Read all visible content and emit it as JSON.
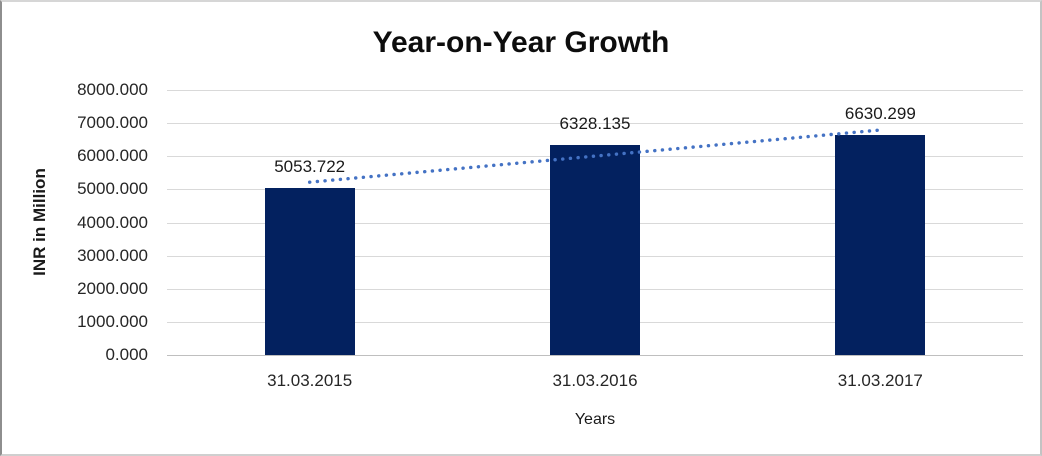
{
  "chart_data": {
    "type": "bar",
    "title": "Year-on-Year Growth",
    "xlabel": "Years",
    "ylabel": "INR in Million",
    "categories": [
      "31.03.2015",
      "31.03.2016",
      "31.03.2017"
    ],
    "values": [
      5053.722,
      6328.135,
      6630.299
    ],
    "value_labels": [
      "5053.722",
      "6328.135",
      "6630.299"
    ],
    "series": [
      {
        "name": "INR in Million",
        "values": [
          5053.722,
          6328.135,
          6630.299
        ]
      }
    ],
    "ylim": [
      0,
      8000
    ],
    "ytick_step": 1000,
    "ytick_labels": [
      "8000.000",
      "7000.000",
      "6000.000",
      "5000.000",
      "4000.000",
      "3000.000",
      "2000.000",
      "1000.000",
      "0.000"
    ],
    "grid": true,
    "legend": false,
    "trendline": {
      "type": "linear",
      "style": "dotted"
    },
    "colors": {
      "bar": "#03215F",
      "trendline": "#4472C4",
      "gridline": "#D9D9D9",
      "axis_line": "#BFBFBF",
      "title_text": "#0D0D0D",
      "label_text": "#262626"
    }
  }
}
